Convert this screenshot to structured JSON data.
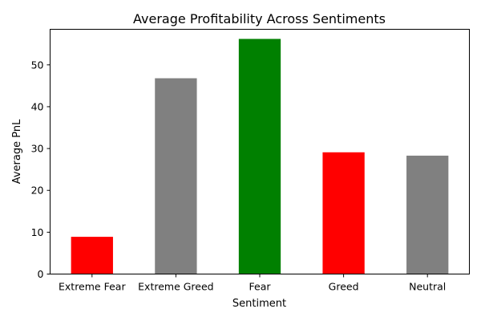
{
  "chart_data": {
    "type": "bar",
    "title": "Average Profitability Across Sentiments",
    "xlabel": "Sentiment",
    "ylabel": "Average PnL",
    "categories": [
      "Extreme Fear",
      "Extreme Greed",
      "Fear",
      "Greed",
      "Neutral"
    ],
    "values": [
      8.9,
      46.8,
      56.2,
      29.1,
      28.3
    ],
    "colors": [
      "#ff0000",
      "#808080",
      "#008000",
      "#ff0000",
      "#808080"
    ],
    "ylim": [
      0,
      58.5
    ],
    "yticks": [
      0,
      10,
      20,
      30,
      40,
      50
    ],
    "grid": false,
    "legend": "none"
  }
}
